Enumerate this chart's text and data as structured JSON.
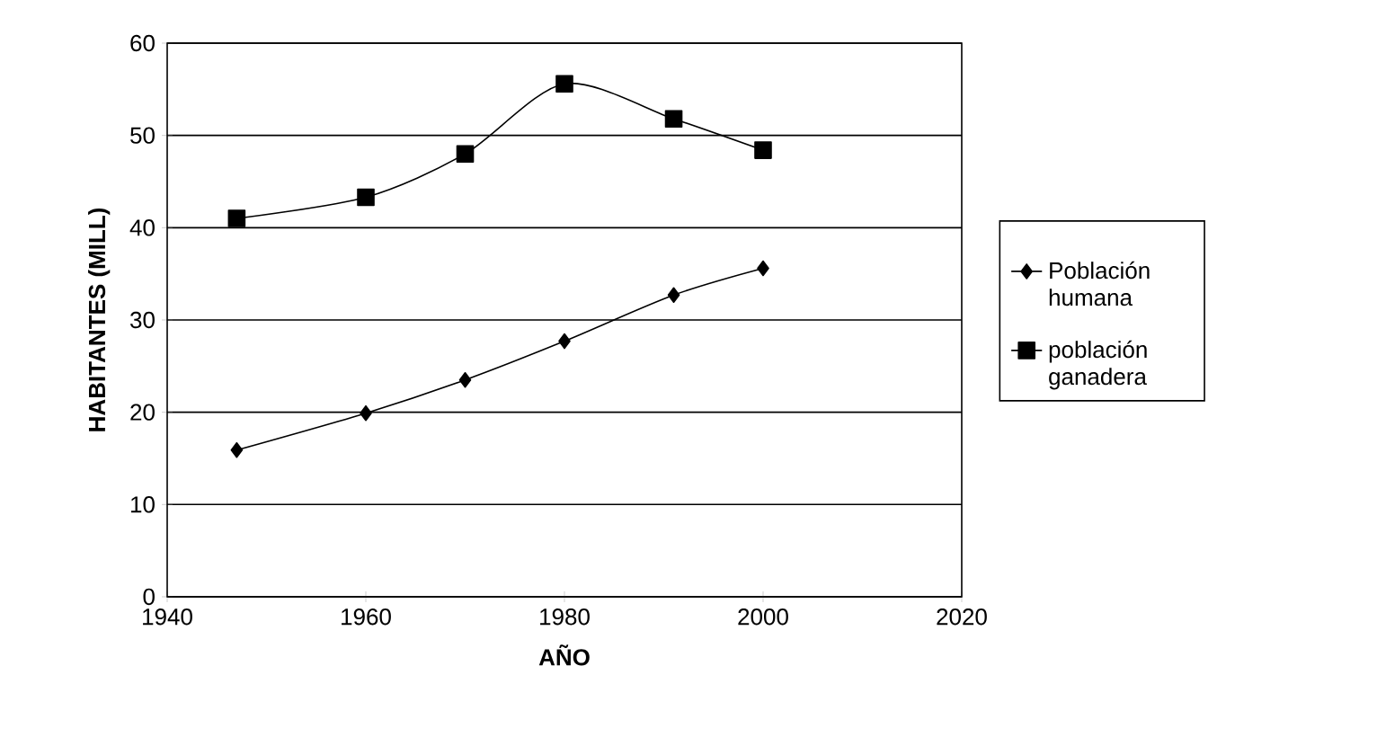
{
  "chart_data": {
    "type": "line",
    "xlabel": "AÑO",
    "ylabel": "HABITANTES (MILL)",
    "series": [
      {
        "name": "Población humana",
        "color": "#000000",
        "marker": "diamond",
        "x": [
          1947,
          1960,
          1970,
          1980,
          1991,
          2000
        ],
        "values": [
          15.9,
          19.9,
          23.5,
          27.7,
          32.7,
          35.6
        ]
      },
      {
        "name": "población ganadera",
        "color": "#000000",
        "marker": "square",
        "x": [
          1947,
          1960,
          1970,
          1980,
          1991,
          2000
        ],
        "values": [
          41.0,
          43.3,
          48.0,
          55.6,
          51.8,
          48.4
        ]
      }
    ],
    "xlim": [
      1940,
      2020
    ],
    "xticks": [
      1940,
      1960,
      1980,
      2000,
      2020
    ],
    "ylim": [
      0,
      60
    ],
    "yticks": [
      0,
      10,
      20,
      30,
      40,
      50,
      60
    ],
    "grid": "y",
    "legend": "right",
    "line_style": "solid"
  }
}
